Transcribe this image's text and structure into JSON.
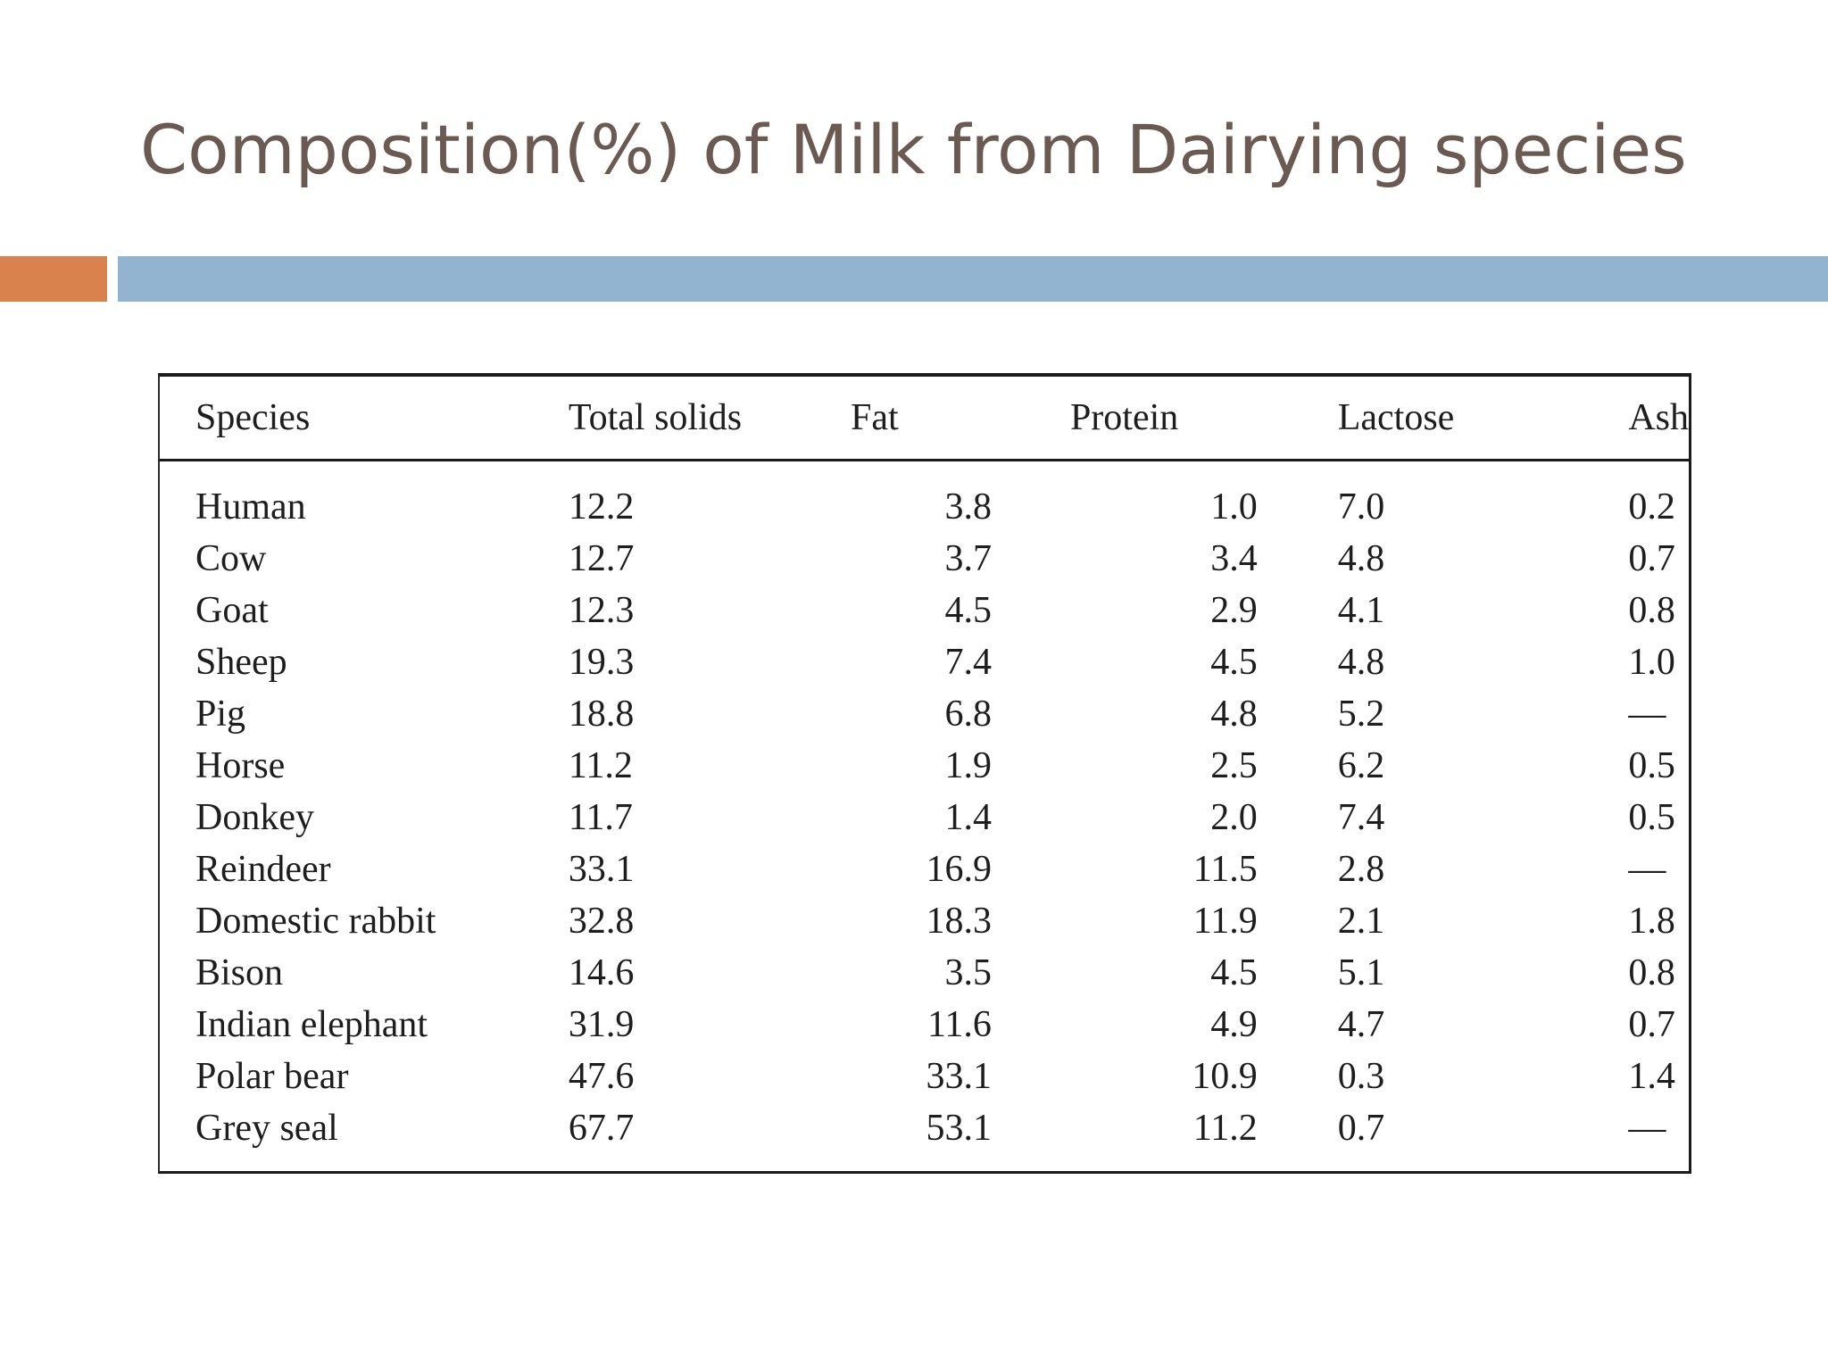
{
  "slide": {
    "title": "Composition(%) of Milk from Dairying species",
    "colors": {
      "title_text": "#6b5a52",
      "accent_orange": "#d9824e",
      "accent_blue": "#93b4d1",
      "table_rule": "#1b1b1b"
    }
  },
  "table": {
    "headers": [
      "Species",
      "Total solids",
      "Fat",
      "Protein",
      "Lactose",
      "Ash"
    ],
    "rows": [
      [
        "Human",
        "12.2",
        "3.8",
        "1.0",
        "7.0",
        "0.2"
      ],
      [
        "Cow",
        "12.7",
        "3.7",
        "3.4",
        "4.8",
        "0.7"
      ],
      [
        "Goat",
        "12.3",
        "4.5",
        "2.9",
        "4.1",
        "0.8"
      ],
      [
        "Sheep",
        "19.3",
        "7.4",
        "4.5",
        "4.8",
        "1.0"
      ],
      [
        "Pig",
        "18.8",
        "6.8",
        "4.8",
        "5.2",
        "—"
      ],
      [
        "Horse",
        "11.2",
        "1.9",
        "2.5",
        "6.2",
        "0.5"
      ],
      [
        "Donkey",
        "11.7",
        "1.4",
        "2.0",
        "7.4",
        "0.5"
      ],
      [
        "Reindeer",
        "33.1",
        "16.9",
        "11.5",
        "2.8",
        "—"
      ],
      [
        "Domestic rabbit",
        "32.8",
        "18.3",
        "11.9",
        "2.1",
        "1.8"
      ],
      [
        "Bison",
        "14.6",
        "3.5",
        "4.5",
        "5.1",
        "0.8"
      ],
      [
        "Indian elephant",
        "31.9",
        "11.6",
        "4.9",
        "4.7",
        "0.7"
      ],
      [
        "Polar bear",
        "47.6",
        "33.1",
        "10.9",
        "0.3",
        "1.4"
      ],
      [
        "Grey seal",
        "67.7",
        "53.1",
        "11.2",
        "0.7",
        "—"
      ]
    ]
  }
}
